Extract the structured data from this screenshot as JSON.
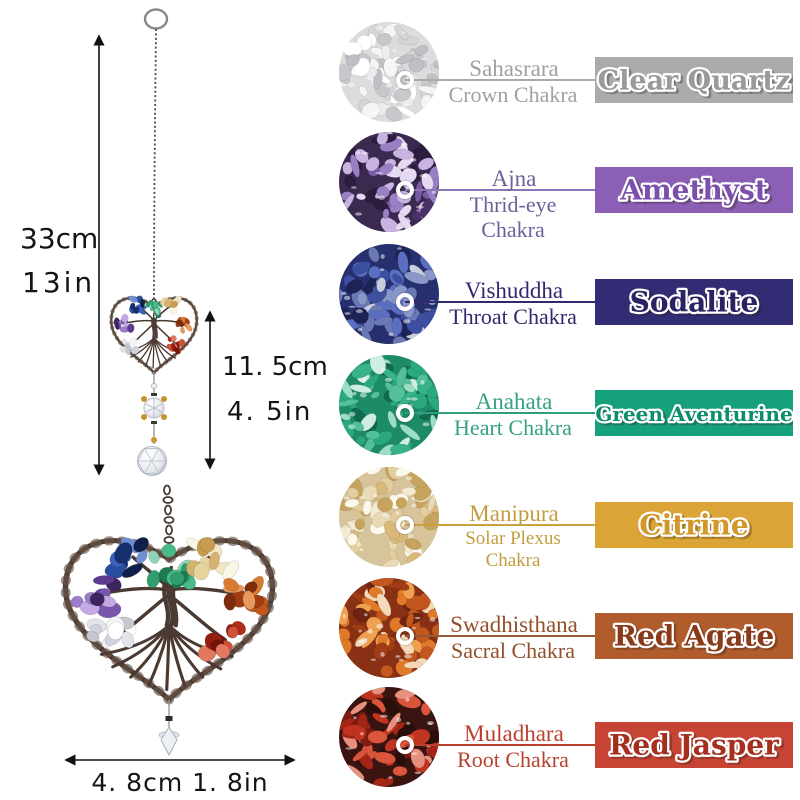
{
  "measurements": {
    "chain_cm": "33cm",
    "chain_in": "13in",
    "drop_cm": "11. 5cm",
    "drop_in": "4. 5in",
    "heart_width": "4. 8cm 1. 8in"
  },
  "chakras": [
    {
      "sanskrit": "Sahasrara",
      "chakra_lines": [
        "Crown Chakra"
      ],
      "stone": "Clear Quartz",
      "colors": {
        "text": "#a0a0a0",
        "line": "#aaaaaa",
        "banner_bg": "#ababab",
        "banner_text": "#9a9a9a"
      },
      "stone_palette": {
        "base": "#dcdcdc",
        "chips": [
          "#ffffff",
          "#ececec",
          "#d5d5d8",
          "#c8c8cc",
          "#f5f5f5",
          "#bfbfc6"
        ]
      }
    },
    {
      "sanskrit": "Ajna",
      "chakra_lines": [
        "Thrid-eye",
        "Chakra"
      ],
      "stone": "Amethyst",
      "colors": {
        "text": "#6f609c",
        "line": "#8a76b5",
        "banner_bg": "#8a5fb5",
        "banner_text": "#7b4fab"
      },
      "stone_palette": {
        "base": "#3a2a50",
        "chips": [
          "#7a5ba6",
          "#9b7fc4",
          "#c9b3e0",
          "#4a3268",
          "#2a1d3e",
          "#e6d9f2"
        ]
      }
    },
    {
      "sanskrit": "Vishuddha",
      "chakra_lines": [
        "Throat Chakra"
      ],
      "stone": "Sodalite",
      "colors": {
        "text": "#2f296d",
        "line": "#2f296d",
        "banner_bg": "#322c74",
        "banner_text": "#292263"
      },
      "stone_palette": {
        "base": "#27306e",
        "chips": [
          "#3c4fa0",
          "#5a6fc0",
          "#8a97c9",
          "#1d2355",
          "#c9cede",
          "#6a79b5"
        ]
      }
    },
    {
      "sanskrit": "Anahata",
      "chakra_lines": [
        "Heart Chakra"
      ],
      "stone": "Green Aventurine",
      "colors": {
        "text": "#35a083",
        "line": "#2f9e7e",
        "banner_bg": "#17a07c",
        "banner_text": "#0c8e6c"
      },
      "stone_palette": {
        "base": "#1d8a68",
        "chips": [
          "#2aa87e",
          "#53c09a",
          "#9adec4",
          "#0f6b50",
          "#cdeee0",
          "#37b28a"
        ]
      }
    },
    {
      "sanskrit": "Manipura",
      "chakra_lines": [
        "Solar Plexus",
        "Chakra"
      ],
      "stone": "Citrine",
      "colors": {
        "text": "#c39d3d",
        "line": "#c9a23f",
        "banner_bg": "#dba437",
        "banner_text": "#d2982a"
      },
      "stone_palette": {
        "base": "#d8c49a",
        "chips": [
          "#e9d9b4",
          "#f4ead0",
          "#d9b97a",
          "#c7a45e",
          "#fdf8ea",
          "#e3cf9e"
        ]
      }
    },
    {
      "sanskrit": "Swadhisthana",
      "chakra_lines": [
        "Sacral Chakra"
      ],
      "stone": "Red Agate",
      "colors": {
        "text": "#94502a",
        "line": "#8f5a35",
        "banner_bg": "#b05c2c",
        "banner_text": "#8a3a18"
      },
      "stone_palette": {
        "base": "#8a3014",
        "chips": [
          "#c2571f",
          "#e07a2a",
          "#f0a04e",
          "#a03c16",
          "#f5d9b8",
          "#6e2410"
        ]
      }
    },
    {
      "sanskrit": "Muladhara",
      "chakra_lines": [
        "Root Chakra"
      ],
      "stone": "Red Jasper",
      "colors": {
        "text": "#b9402e",
        "line": "#b9402e",
        "banner_bg": "#c64434",
        "banner_text": "#a52f1f"
      },
      "stone_palette": {
        "base": "#3a1410",
        "chips": [
          "#c03420",
          "#a22516",
          "#d9553c",
          "#7e1c10",
          "#e8907e",
          "#2a0e0a"
        ]
      }
    }
  ]
}
